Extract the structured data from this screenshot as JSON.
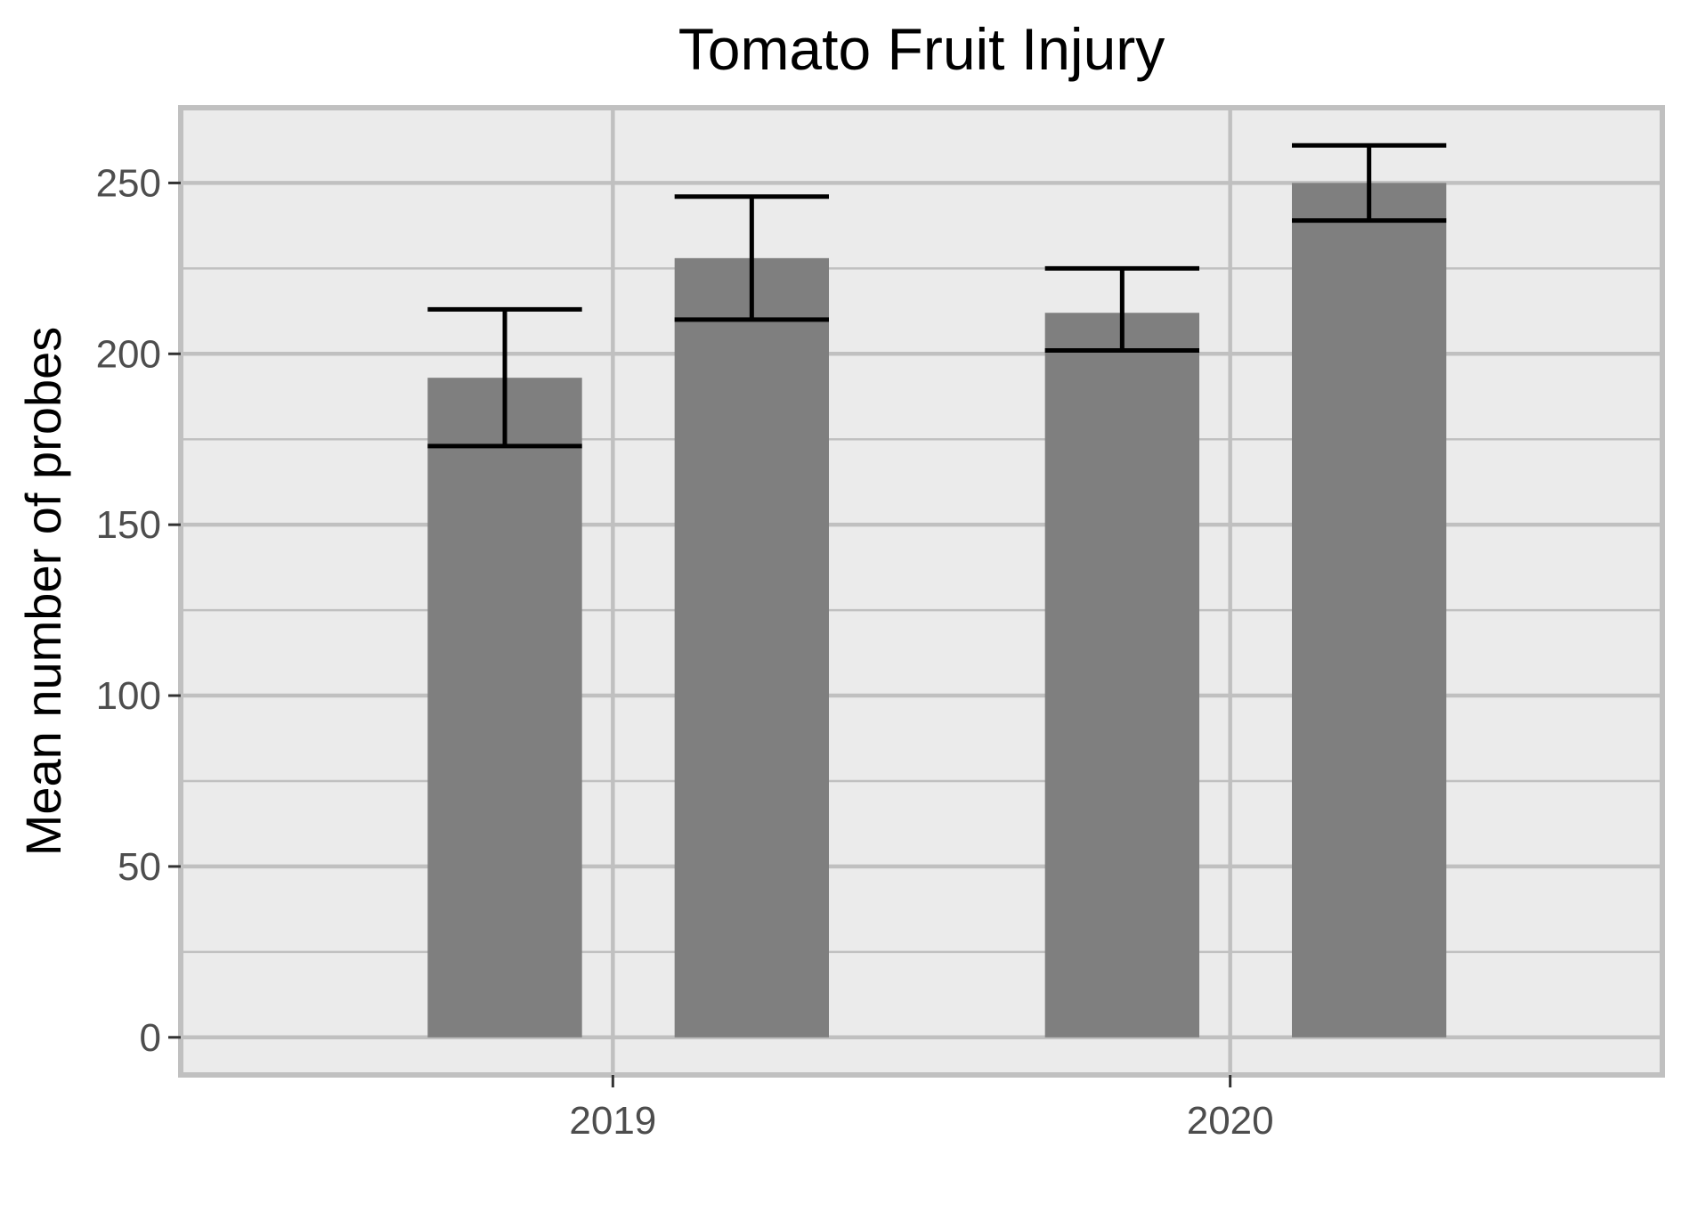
{
  "chart_data": {
    "type": "bar",
    "title": "Tomato Fruit Injury",
    "xlabel": "",
    "ylabel": "Mean number of probes",
    "categories": [
      "2019",
      "2020"
    ],
    "series": [
      {
        "values": [
          193,
          212
        ],
        "error_low": [
          173,
          201
        ],
        "error_high": [
          213,
          225
        ]
      },
      {
        "values": [
          228,
          250
        ],
        "error_low": [
          210,
          239
        ],
        "error_high": [
          246,
          261
        ]
      }
    ],
    "y_ticks": [
      "0",
      "50",
      "100",
      "150",
      "200",
      "250"
    ],
    "ylim": [
      -11,
      272
    ],
    "grid": true,
    "legend": "none",
    "colors": {
      "bar": "#7f7f7f",
      "panel": "#ebebeb",
      "grid": "#c0c0c0",
      "error_bar": "#000000"
    }
  }
}
